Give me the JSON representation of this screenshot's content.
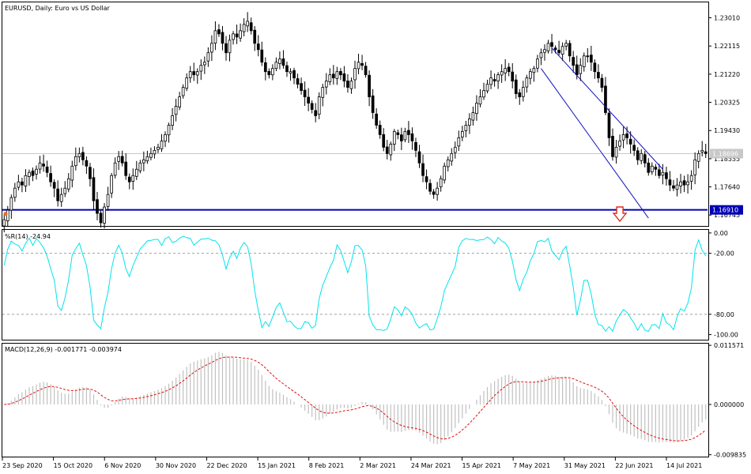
{
  "chart_data": {
    "type": "candlestick",
    "symbol_label": "EURUSD, Daily:  Euro vs US Dollar",
    "x_ticks": [
      "23 Sep 2020",
      "15 Oct 2020",
      "6 Nov 2020",
      "30 Nov 2020",
      "22 Dec 2020",
      "15 Jan 2021",
      "8 Feb 2021",
      "2 Mar 2021",
      "24 Mar 2021",
      "15 Apr 2021",
      "7 May 2021",
      "31 May 2021",
      "22 Jun 2021",
      "14 Jul 2021"
    ],
    "price_panel": {
      "ylim": [
        1.164,
        1.235
      ],
      "y_ticks": [
        "1.23010",
        "1.22115",
        "1.21220",
        "1.20325",
        "1.19430",
        "1.18535",
        "1.17640",
        "1.16745"
      ],
      "current_price": "1.18696",
      "current_value": 1.18696,
      "support_level": "1.16910",
      "support_value": 1.1691,
      "support_color": "#0000b4",
      "channel_color": "#1010c0",
      "arrow_color": "#e0281e",
      "bull_color": "#000000",
      "bear_color": "#000000",
      "closes": [
        1.166,
        1.169,
        1.173,
        1.176,
        1.178,
        1.177,
        1.18,
        1.181,
        1.18,
        1.182,
        1.184,
        1.183,
        1.181,
        1.178,
        1.176,
        1.172,
        1.174,
        1.176,
        1.179,
        1.183,
        1.186,
        1.187,
        1.185,
        1.183,
        1.179,
        1.172,
        1.168,
        1.165,
        1.17,
        1.174,
        1.18,
        1.184,
        1.186,
        1.184,
        1.18,
        1.178,
        1.18,
        1.182,
        1.184,
        1.185,
        1.186,
        1.187,
        1.188,
        1.189,
        1.191,
        1.193,
        1.196,
        1.199,
        1.202,
        1.205,
        1.208,
        1.211,
        1.213,
        1.212,
        1.213,
        1.215,
        1.216,
        1.219,
        1.222,
        1.226,
        1.225,
        1.222,
        1.219,
        1.223,
        1.225,
        1.224,
        1.226,
        1.228,
        1.229,
        1.226,
        1.222,
        1.22,
        1.216,
        1.213,
        1.212,
        1.214,
        1.216,
        1.217,
        1.215,
        1.213,
        1.213,
        1.211,
        1.209,
        1.207,
        1.205,
        1.203,
        1.201,
        1.199,
        1.205,
        1.208,
        1.21,
        1.212,
        1.211,
        1.213,
        1.212,
        1.21,
        1.208,
        1.21,
        1.214,
        1.216,
        1.215,
        1.212,
        1.205,
        1.2,
        1.196,
        1.193,
        1.189,
        1.187,
        1.19,
        1.194,
        1.193,
        1.191,
        1.194,
        1.193,
        1.191,
        1.188,
        1.184,
        1.18,
        1.178,
        1.175,
        1.174,
        1.176,
        1.179,
        1.183,
        1.185,
        1.187,
        1.189,
        1.192,
        1.194,
        1.196,
        1.198,
        1.2,
        1.203,
        1.205,
        1.207,
        1.209,
        1.211,
        1.21,
        1.212,
        1.213,
        1.214,
        1.213,
        1.21,
        1.206,
        1.205,
        1.208,
        1.211,
        1.213,
        1.214,
        1.217,
        1.219,
        1.22,
        1.222,
        1.221,
        1.22,
        1.219,
        1.221,
        1.222,
        1.218,
        1.215,
        1.212,
        1.215,
        1.218,
        1.218,
        1.216,
        1.213,
        1.211,
        1.208,
        1.2,
        1.192,
        1.186,
        1.189,
        1.191,
        1.193,
        1.192,
        1.19,
        1.188,
        1.185,
        1.187,
        1.184,
        1.181,
        1.183,
        1.182,
        1.18,
        1.181,
        1.179,
        1.177,
        1.176,
        1.177,
        1.178,
        1.177,
        1.178,
        1.18,
        1.185,
        1.187,
        1.188,
        1.187
      ]
    },
    "wpr_panel": {
      "label": "%R(14) -24.94",
      "ylim": [
        -105,
        3
      ],
      "y_ticks": [
        "0.00",
        "-20.00",
        "-80.00",
        "-100.00"
      ],
      "levels": [
        -20,
        -80
      ],
      "line_color": "#00e4ec"
    },
    "macd_panel": {
      "label": "MACD(12,26,9) -0.001771 -0.003974",
      "ylim": [
        -0.0102,
        0.0119
      ],
      "y_ticks": [
        "0.011571",
        "0.000000",
        "-0.009835"
      ],
      "hist_color": "#c0c0c0",
      "signal_color": "#e01010"
    }
  }
}
